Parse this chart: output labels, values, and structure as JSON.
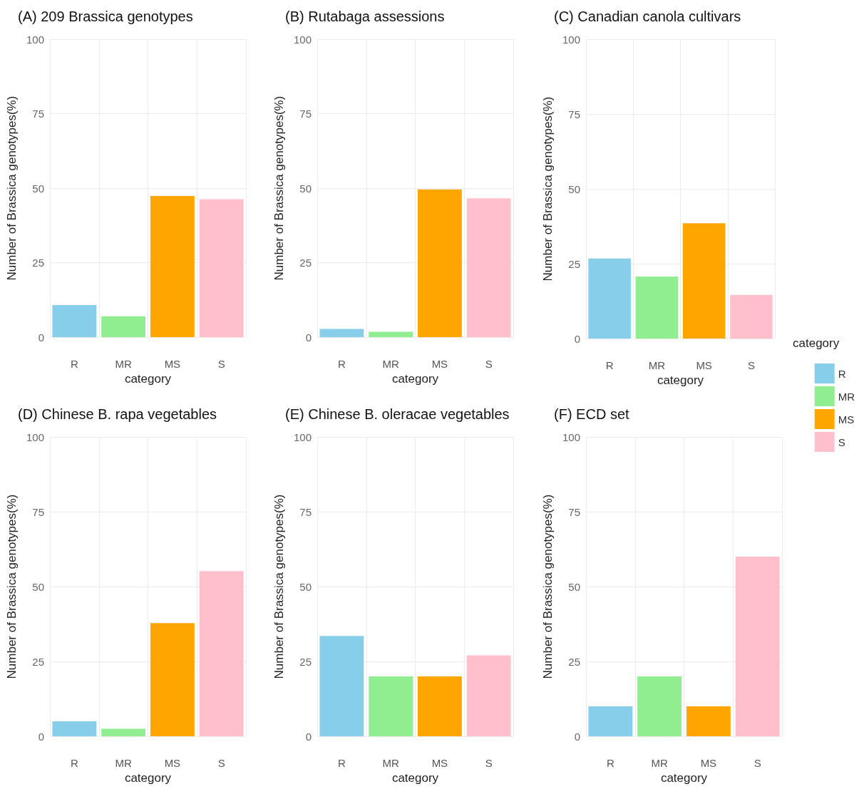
{
  "chart_data": [
    {
      "type": "bar",
      "title": "(A) 209 Brassica genotypes",
      "xlabel": "category",
      "ylabel": "Number of Brassica genotypes(%)",
      "categories": [
        "R",
        "MR",
        "MS",
        "S"
      ],
      "values": [
        10.8,
        7,
        47.4,
        46.3
      ],
      "colors": [
        "#87ceeb",
        "#90ee90",
        "#ffa500",
        "#ffc0cb"
      ],
      "ylim": [
        0,
        100
      ],
      "yticks": [
        0,
        25,
        50,
        75,
        100
      ],
      "grid": true
    },
    {
      "type": "bar",
      "title": "(B) Rutabaga assessions",
      "xlabel": "category",
      "ylabel": "Number of Brassica genotypes(%)",
      "categories": [
        "R",
        "MR",
        "MS",
        "S"
      ],
      "values": [
        2.8,
        1.8,
        49.6,
        46.6
      ],
      "colors": [
        "#87ceeb",
        "#90ee90",
        "#ffa500",
        "#ffc0cb"
      ],
      "ylim": [
        0,
        100
      ],
      "yticks": [
        0,
        25,
        50,
        75,
        100
      ],
      "grid": true
    },
    {
      "type": "bar",
      "title": "(C) Canadian canola cultivars",
      "xlabel": "category",
      "ylabel": "Number of Brassica genotypes(%)",
      "categories": [
        "R",
        "MR",
        "MS",
        "S"
      ],
      "ylim": [
        0,
        100
      ],
      "yticks": [
        0,
        25,
        50,
        75,
        100
      ],
      "grid": true,
      "legend": "right",
      "legend_title": "category",
      "series": [
        {
          "name": "R",
          "color": "#87ceeb",
          "values": [
            26.7,
            null,
            null,
            null
          ]
        },
        {
          "name": "MR",
          "color": "#90ee90",
          "values": [
            null,
            20.7,
            null,
            null
          ]
        },
        {
          "name": "MS",
          "color": "#ffa500",
          "values": [
            null,
            null,
            38.5,
            null
          ]
        },
        {
          "name": "S",
          "color": "#ffc0cb",
          "values": [
            null,
            null,
            null,
            14.6
          ]
        }
      ]
    },
    {
      "type": "bar",
      "title": "(D) Chinese B. rapa vegetables",
      "xlabel": "category",
      "ylabel": "Number of Brassica genotypes(%)",
      "categories": [
        "R",
        "MR",
        "MS",
        "S"
      ],
      "values": [
        5,
        2.5,
        37.8,
        55.2
      ],
      "colors": [
        "#87ceeb",
        "#90ee90",
        "#ffa500",
        "#ffc0cb"
      ],
      "ylim": [
        0,
        100
      ],
      "yticks": [
        0,
        25,
        50,
        75,
        100
      ],
      "grid": true
    },
    {
      "type": "bar",
      "title": "(E) Chinese B. oleracae vegetables",
      "xlabel": "category",
      "ylabel": "Number of Brassica genotypes(%)",
      "categories": [
        "R",
        "MR",
        "MS",
        "S"
      ],
      "values": [
        33.5,
        20,
        20,
        27
      ],
      "colors": [
        "#87ceeb",
        "#90ee90",
        "#ffa500",
        "#ffc0cb"
      ],
      "ylim": [
        0,
        100
      ],
      "yticks": [
        0,
        25,
        50,
        75,
        100
      ],
      "grid": true
    },
    {
      "type": "bar",
      "title": "(F) ECD set",
      "xlabel": "category",
      "ylabel": "Number of Brassica genotypes(%)",
      "categories": [
        "R",
        "MR",
        "MS",
        "S"
      ],
      "values": [
        10,
        20,
        10,
        60
      ],
      "colors": [
        "#87ceeb",
        "#90ee90",
        "#ffa500",
        "#ffc0cb"
      ],
      "ylim": [
        0,
        100
      ],
      "yticks": [
        0,
        25,
        50,
        75,
        100
      ],
      "grid": true
    }
  ]
}
